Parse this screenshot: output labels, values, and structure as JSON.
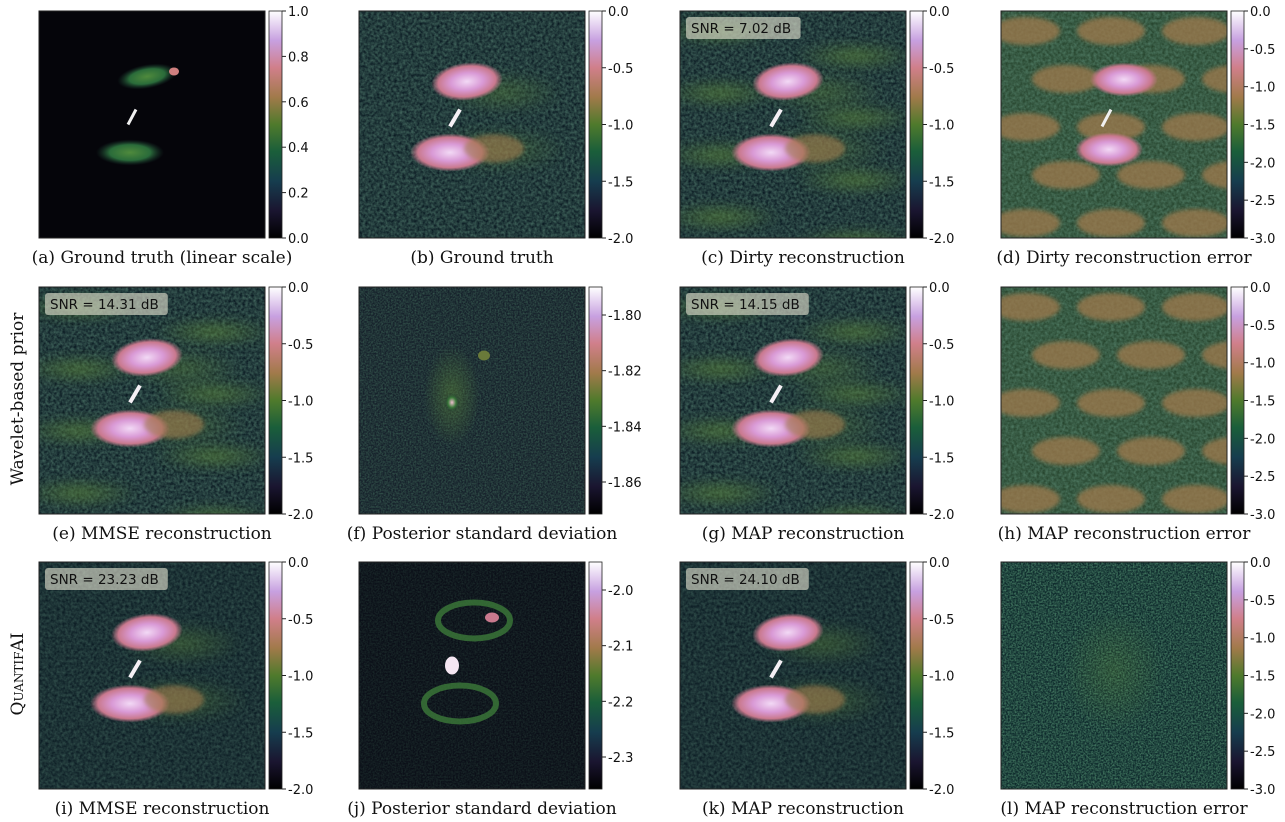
{
  "row_labels": [
    "Wavelet-based prior",
    "QuantifAI"
  ],
  "panels": [
    {
      "caption": "(a) Ground truth (linear scale)",
      "image": "ground-truth-linear",
      "cbar_ticks": [
        "1.0",
        "0.8",
        "0.6",
        "0.4",
        "0.2",
        "0.0"
      ],
      "snr": ""
    },
    {
      "caption": "(b) Ground truth",
      "image": "ground-truth-log",
      "cbar_ticks": [
        "0.0",
        "-0.5",
        "-1.0",
        "-1.5",
        "-2.0"
      ],
      "snr": ""
    },
    {
      "caption": "(c) Dirty reconstruction",
      "image": "dirty",
      "cbar_ticks": [
        "0.0",
        "-0.5",
        "-1.0",
        "-1.5",
        "-2.0"
      ],
      "snr": "SNR = 7.02 dB"
    },
    {
      "caption": "(d) Dirty reconstruction error",
      "image": "dirty-error",
      "cbar_ticks": [
        "0.0",
        "-0.5",
        "-1.0",
        "-1.5",
        "-2.0",
        "-2.5",
        "-3.0"
      ],
      "snr": ""
    },
    {
      "caption": "(e) MMSE reconstruction",
      "image": "wavelet-mmse",
      "cbar_ticks": [
        "0.0",
        "-0.5",
        "-1.0",
        "-1.5",
        "-2.0"
      ],
      "snr": "SNR = 14.31 dB"
    },
    {
      "caption": "(f) Posterior standard deviation",
      "image": "wavelet-std",
      "cbar_ticks": [
        "-1.80",
        "-1.82",
        "-1.84",
        "-1.86"
      ],
      "snr": ""
    },
    {
      "caption": "(g) MAP reconstruction",
      "image": "wavelet-map",
      "cbar_ticks": [
        "0.0",
        "-0.5",
        "-1.0",
        "-1.5",
        "-2.0"
      ],
      "snr": "SNR = 14.15 dB"
    },
    {
      "caption": "(h) MAP reconstruction error",
      "image": "wavelet-map-error",
      "cbar_ticks": [
        "0.0",
        "-0.5",
        "-1.0",
        "-1.5",
        "-2.0",
        "-2.5",
        "-3.0"
      ],
      "snr": ""
    },
    {
      "caption": "(i) MMSE reconstruction",
      "image": "quantifai-mmse",
      "cbar_ticks": [
        "0.0",
        "-0.5",
        "-1.0",
        "-1.5",
        "-2.0"
      ],
      "snr": "SNR = 23.23 dB"
    },
    {
      "caption": "(j) Posterior standard deviation",
      "image": "quantifai-std",
      "cbar_ticks": [
        "-2.0",
        "-2.1",
        "-2.2",
        "-2.3"
      ],
      "snr": ""
    },
    {
      "caption": "(k) MAP reconstruction",
      "image": "quantifai-map",
      "cbar_ticks": [
        "0.0",
        "-0.5",
        "-1.0",
        "-1.5",
        "-2.0"
      ],
      "snr": "SNR = 24.10 dB"
    },
    {
      "caption": "(l) MAP reconstruction error",
      "image": "quantifai-map-error",
      "cbar_ticks": [
        "0.0",
        "-0.5",
        "-1.0",
        "-1.5",
        "-2.0",
        "-2.5",
        "-3.0"
      ],
      "snr": ""
    }
  ]
}
